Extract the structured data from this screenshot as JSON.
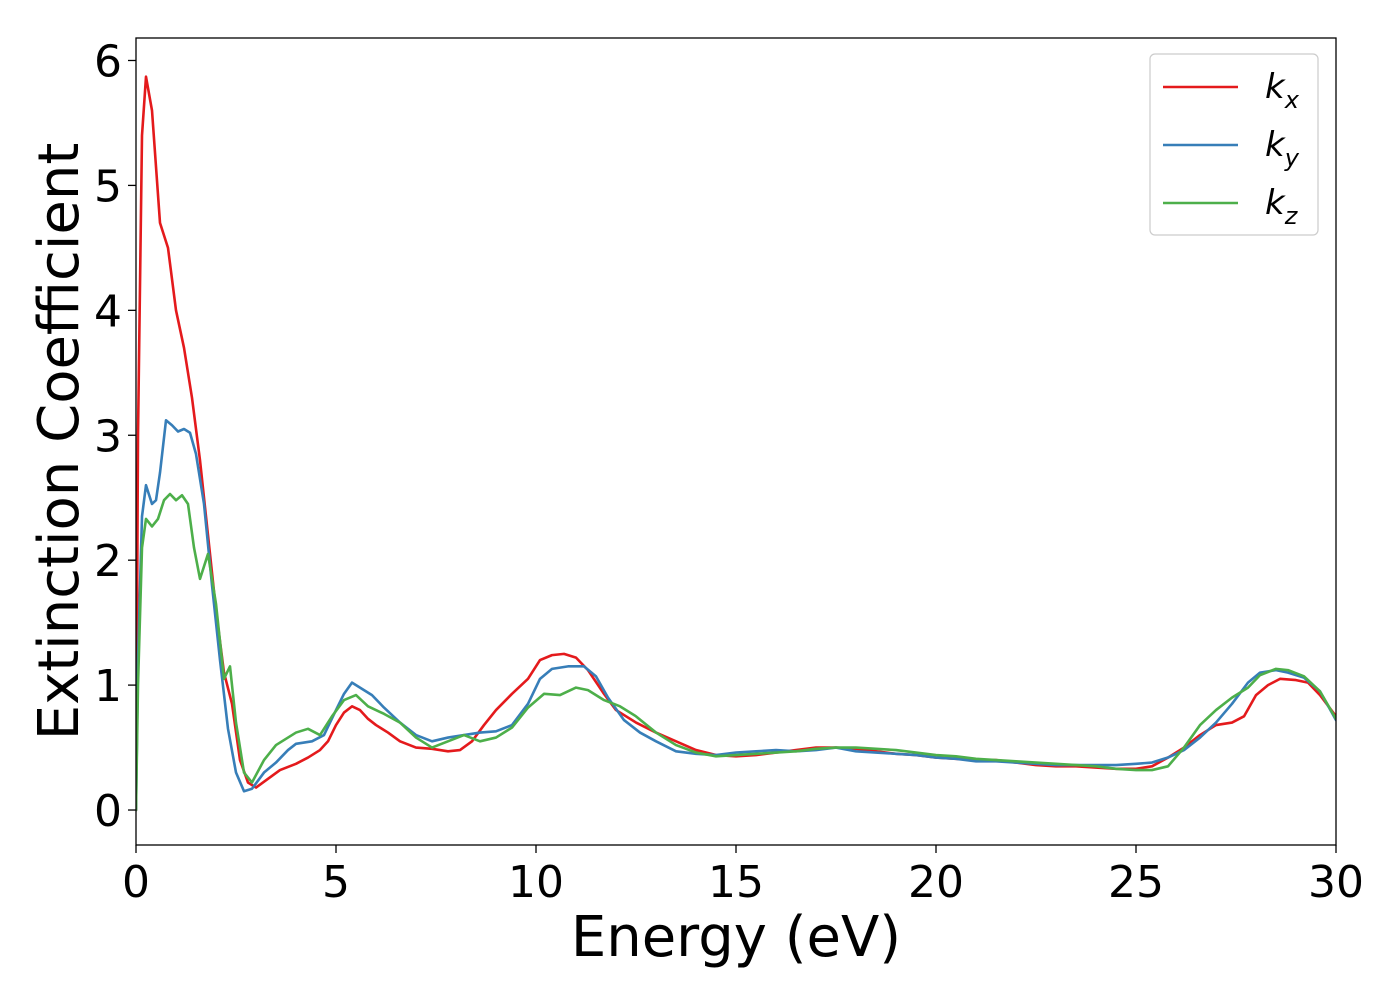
{
  "chart_data": {
    "type": "line",
    "xlabel": "Energy (eV)",
    "ylabel": "Extinction Coefficient",
    "xlim": [
      0,
      30
    ],
    "ylim": [
      -0.28,
      6.18
    ],
    "xticks": [
      0,
      5,
      10,
      15,
      20,
      25,
      30
    ],
    "yticks": [
      0,
      1,
      2,
      3,
      4,
      5,
      6
    ],
    "grid": false,
    "legend_position": "top-right",
    "series": [
      {
        "name": "k",
        "subscript": "x",
        "color": "#e41a1c",
        "points": [
          [
            0,
            0.0
          ],
          [
            0.05,
            3.0
          ],
          [
            0.15,
            5.4
          ],
          [
            0.25,
            5.87
          ],
          [
            0.4,
            5.6
          ],
          [
            0.6,
            4.7
          ],
          [
            0.8,
            4.5
          ],
          [
            1.0,
            4.0
          ],
          [
            1.2,
            3.7
          ],
          [
            1.4,
            3.3
          ],
          [
            1.6,
            2.8
          ],
          [
            1.8,
            2.2
          ],
          [
            2.0,
            1.6
          ],
          [
            2.2,
            1.1
          ],
          [
            2.4,
            0.85
          ],
          [
            2.6,
            0.4
          ],
          [
            2.8,
            0.22
          ],
          [
            3.0,
            0.18
          ],
          [
            3.3,
            0.25
          ],
          [
            3.6,
            0.32
          ],
          [
            4.0,
            0.37
          ],
          [
            4.3,
            0.42
          ],
          [
            4.6,
            0.48
          ],
          [
            4.8,
            0.55
          ],
          [
            5.0,
            0.68
          ],
          [
            5.2,
            0.78
          ],
          [
            5.4,
            0.83
          ],
          [
            5.6,
            0.8
          ],
          [
            5.8,
            0.73
          ],
          [
            6.0,
            0.68
          ],
          [
            6.3,
            0.62
          ],
          [
            6.6,
            0.55
          ],
          [
            7.0,
            0.5
          ],
          [
            7.4,
            0.49
          ],
          [
            7.8,
            0.47
          ],
          [
            8.1,
            0.48
          ],
          [
            8.4,
            0.55
          ],
          [
            8.7,
            0.68
          ],
          [
            9.0,
            0.8
          ],
          [
            9.4,
            0.93
          ],
          [
            9.8,
            1.05
          ],
          [
            10.1,
            1.2
          ],
          [
            10.4,
            1.24
          ],
          [
            10.7,
            1.25
          ],
          [
            11.0,
            1.22
          ],
          [
            11.3,
            1.12
          ],
          [
            11.7,
            0.93
          ],
          [
            12.0,
            0.8
          ],
          [
            12.5,
            0.7
          ],
          [
            13.0,
            0.62
          ],
          [
            13.5,
            0.55
          ],
          [
            14.0,
            0.48
          ],
          [
            14.5,
            0.44
          ],
          [
            15.0,
            0.43
          ],
          [
            15.5,
            0.44
          ],
          [
            16.0,
            0.46
          ],
          [
            16.5,
            0.48
          ],
          [
            17.0,
            0.5
          ],
          [
            17.5,
            0.5
          ],
          [
            18.0,
            0.49
          ],
          [
            18.5,
            0.47
          ],
          [
            19.0,
            0.45
          ],
          [
            19.5,
            0.44
          ],
          [
            20.0,
            0.42
          ],
          [
            20.5,
            0.41
          ],
          [
            21.0,
            0.4
          ],
          [
            21.5,
            0.4
          ],
          [
            22.0,
            0.38
          ],
          [
            22.5,
            0.36
          ],
          [
            23.0,
            0.35
          ],
          [
            23.5,
            0.35
          ],
          [
            24.0,
            0.34
          ],
          [
            24.5,
            0.33
          ],
          [
            25.0,
            0.33
          ],
          [
            25.4,
            0.35
          ],
          [
            25.8,
            0.42
          ],
          [
            26.2,
            0.5
          ],
          [
            26.6,
            0.6
          ],
          [
            27.0,
            0.68
          ],
          [
            27.4,
            0.7
          ],
          [
            27.7,
            0.75
          ],
          [
            28.0,
            0.92
          ],
          [
            28.3,
            1.0
          ],
          [
            28.6,
            1.05
          ],
          [
            29.0,
            1.04
          ],
          [
            29.3,
            1.02
          ],
          [
            29.6,
            0.92
          ],
          [
            30.0,
            0.75
          ]
        ]
      },
      {
        "name": "k",
        "subscript": "y",
        "color": "#377eb8",
        "points": [
          [
            0,
            0.0
          ],
          [
            0.05,
            1.2
          ],
          [
            0.15,
            2.35
          ],
          [
            0.25,
            2.6
          ],
          [
            0.4,
            2.45
          ],
          [
            0.5,
            2.48
          ],
          [
            0.6,
            2.7
          ],
          [
            0.75,
            3.12
          ],
          [
            0.9,
            3.08
          ],
          [
            1.05,
            3.03
          ],
          [
            1.2,
            3.05
          ],
          [
            1.35,
            3.02
          ],
          [
            1.5,
            2.85
          ],
          [
            1.7,
            2.45
          ],
          [
            1.9,
            1.8
          ],
          [
            2.1,
            1.2
          ],
          [
            2.3,
            0.65
          ],
          [
            2.5,
            0.3
          ],
          [
            2.7,
            0.15
          ],
          [
            2.9,
            0.17
          ],
          [
            3.2,
            0.3
          ],
          [
            3.5,
            0.38
          ],
          [
            3.8,
            0.48
          ],
          [
            4.0,
            0.53
          ],
          [
            4.4,
            0.55
          ],
          [
            4.7,
            0.6
          ],
          [
            5.0,
            0.8
          ],
          [
            5.2,
            0.93
          ],
          [
            5.4,
            1.02
          ],
          [
            5.6,
            0.98
          ],
          [
            5.9,
            0.92
          ],
          [
            6.2,
            0.82
          ],
          [
            6.6,
            0.7
          ],
          [
            7.0,
            0.6
          ],
          [
            7.4,
            0.55
          ],
          [
            7.8,
            0.58
          ],
          [
            8.2,
            0.6
          ],
          [
            8.6,
            0.62
          ],
          [
            9.0,
            0.63
          ],
          [
            9.4,
            0.68
          ],
          [
            9.8,
            0.85
          ],
          [
            10.1,
            1.05
          ],
          [
            10.4,
            1.13
          ],
          [
            10.8,
            1.15
          ],
          [
            11.2,
            1.15
          ],
          [
            11.5,
            1.07
          ],
          [
            11.8,
            0.9
          ],
          [
            12.2,
            0.72
          ],
          [
            12.6,
            0.62
          ],
          [
            13.0,
            0.55
          ],
          [
            13.5,
            0.47
          ],
          [
            14.0,
            0.45
          ],
          [
            14.5,
            0.44
          ],
          [
            15.0,
            0.46
          ],
          [
            15.5,
            0.47
          ],
          [
            16.0,
            0.48
          ],
          [
            16.5,
            0.47
          ],
          [
            17.0,
            0.48
          ],
          [
            17.5,
            0.5
          ],
          [
            18.0,
            0.47
          ],
          [
            18.5,
            0.46
          ],
          [
            19.0,
            0.45
          ],
          [
            19.5,
            0.44
          ],
          [
            20.0,
            0.42
          ],
          [
            20.5,
            0.41
          ],
          [
            21.0,
            0.39
          ],
          [
            21.5,
            0.39
          ],
          [
            22.0,
            0.38
          ],
          [
            22.5,
            0.37
          ],
          [
            23.0,
            0.36
          ],
          [
            23.5,
            0.36
          ],
          [
            24.0,
            0.36
          ],
          [
            24.5,
            0.36
          ],
          [
            25.0,
            0.37
          ],
          [
            25.4,
            0.38
          ],
          [
            25.8,
            0.42
          ],
          [
            26.2,
            0.48
          ],
          [
            26.6,
            0.58
          ],
          [
            27.0,
            0.7
          ],
          [
            27.4,
            0.85
          ],
          [
            27.8,
            1.02
          ],
          [
            28.1,
            1.1
          ],
          [
            28.5,
            1.12
          ],
          [
            28.8,
            1.1
          ],
          [
            29.2,
            1.06
          ],
          [
            29.6,
            0.95
          ],
          [
            30.0,
            0.72
          ]
        ]
      },
      {
        "name": "k",
        "subscript": "z",
        "color": "#4daf4a",
        "points": [
          [
            0,
            0.0
          ],
          [
            0.05,
            1.0
          ],
          [
            0.15,
            2.1
          ],
          [
            0.25,
            2.33
          ],
          [
            0.4,
            2.27
          ],
          [
            0.55,
            2.33
          ],
          [
            0.7,
            2.48
          ],
          [
            0.85,
            2.53
          ],
          [
            1.0,
            2.48
          ],
          [
            1.15,
            2.52
          ],
          [
            1.3,
            2.45
          ],
          [
            1.45,
            2.1
          ],
          [
            1.6,
            1.85
          ],
          [
            1.8,
            2.05
          ],
          [
            2.0,
            1.65
          ],
          [
            2.2,
            1.05
          ],
          [
            2.35,
            1.15
          ],
          [
            2.5,
            0.7
          ],
          [
            2.7,
            0.3
          ],
          [
            2.9,
            0.22
          ],
          [
            3.2,
            0.4
          ],
          [
            3.5,
            0.52
          ],
          [
            3.8,
            0.58
          ],
          [
            4.0,
            0.62
          ],
          [
            4.3,
            0.65
          ],
          [
            4.6,
            0.6
          ],
          [
            4.9,
            0.75
          ],
          [
            5.2,
            0.88
          ],
          [
            5.5,
            0.92
          ],
          [
            5.8,
            0.83
          ],
          [
            6.2,
            0.77
          ],
          [
            6.6,
            0.7
          ],
          [
            7.0,
            0.58
          ],
          [
            7.4,
            0.5
          ],
          [
            7.8,
            0.55
          ],
          [
            8.2,
            0.6
          ],
          [
            8.6,
            0.55
          ],
          [
            9.0,
            0.58
          ],
          [
            9.4,
            0.66
          ],
          [
            9.8,
            0.82
          ],
          [
            10.2,
            0.93
          ],
          [
            10.6,
            0.92
          ],
          [
            11.0,
            0.98
          ],
          [
            11.3,
            0.96
          ],
          [
            11.7,
            0.88
          ],
          [
            12.1,
            0.83
          ],
          [
            12.5,
            0.75
          ],
          [
            13.0,
            0.62
          ],
          [
            13.5,
            0.52
          ],
          [
            14.0,
            0.46
          ],
          [
            14.5,
            0.43
          ],
          [
            15.0,
            0.44
          ],
          [
            15.5,
            0.45
          ],
          [
            16.0,
            0.46
          ],
          [
            16.5,
            0.47
          ],
          [
            17.0,
            0.49
          ],
          [
            17.5,
            0.5
          ],
          [
            18.0,
            0.5
          ],
          [
            18.5,
            0.49
          ],
          [
            19.0,
            0.48
          ],
          [
            19.5,
            0.46
          ],
          [
            20.0,
            0.44
          ],
          [
            20.5,
            0.43
          ],
          [
            21.0,
            0.41
          ],
          [
            21.5,
            0.4
          ],
          [
            22.0,
            0.39
          ],
          [
            22.5,
            0.38
          ],
          [
            23.0,
            0.37
          ],
          [
            23.5,
            0.36
          ],
          [
            24.0,
            0.35
          ],
          [
            24.5,
            0.33
          ],
          [
            25.0,
            0.32
          ],
          [
            25.4,
            0.32
          ],
          [
            25.8,
            0.35
          ],
          [
            26.2,
            0.5
          ],
          [
            26.6,
            0.68
          ],
          [
            27.0,
            0.8
          ],
          [
            27.4,
            0.9
          ],
          [
            27.8,
            0.98
          ],
          [
            28.1,
            1.08
          ],
          [
            28.5,
            1.13
          ],
          [
            28.8,
            1.12
          ],
          [
            29.2,
            1.07
          ],
          [
            29.6,
            0.95
          ],
          [
            30.0,
            0.73
          ]
        ]
      }
    ]
  }
}
